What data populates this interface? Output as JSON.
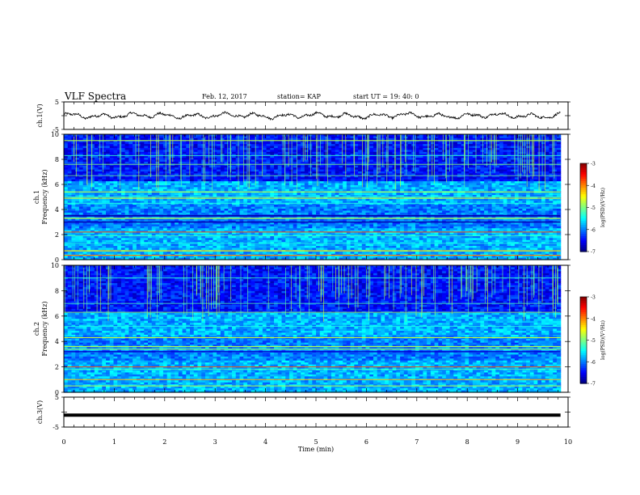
{
  "header": {
    "title": "VLF Spectra",
    "date": "Feb. 12, 2017",
    "station": "station= KAP",
    "start": "start  UT =   19: 40: 0"
  },
  "chart_data": [
    {
      "type": "line",
      "name": "waveform-ch1",
      "ylabel": "ch.1(V)",
      "ylim": [
        -5,
        5
      ],
      "yticklabels": [
        "-5",
        "5"
      ],
      "xlim": [
        0,
        10
      ],
      "duration_min": 9.85,
      "approx_range": [
        -1.8,
        1.4
      ]
    },
    {
      "type": "heatmap",
      "name": "spectrogram-ch1",
      "ylabel": "ch.1\nFrequency (kHz)",
      "ylim": [
        0,
        10
      ],
      "yticks": [
        0,
        2,
        4,
        6,
        8,
        10
      ],
      "xlim": [
        0,
        10
      ],
      "colorbar": {
        "label": "log(PSD)(V²/Hz)",
        "range": [
          -7,
          -3
        ],
        "ticks": [
          -7,
          -6,
          -5,
          -4,
          -3
        ]
      }
    },
    {
      "type": "heatmap",
      "name": "spectrogram-ch2",
      "ylabel": "ch.2\nFrequency (kHz)",
      "ylim": [
        0,
        10
      ],
      "yticks": [
        0,
        2,
        4,
        6,
        8,
        10
      ],
      "xlim": [
        0,
        10
      ],
      "colorbar": {
        "label": "log(PSD)(V²/Hz)",
        "range": [
          -7,
          -3
        ],
        "ticks": [
          -7,
          -6,
          -5,
          -4,
          -3
        ]
      }
    },
    {
      "type": "line",
      "name": "waveform-ch3",
      "ylabel": "ch.3(V)",
      "ylim": [
        -5,
        5
      ],
      "yticklabels": [
        "-5",
        "5"
      ],
      "constant_value": -1
    }
  ],
  "xaxis": {
    "label": "Time (min)",
    "ticks": [
      0,
      1,
      2,
      3,
      4,
      5,
      6,
      7,
      8,
      9,
      10
    ],
    "range": [
      0,
      10
    ]
  }
}
